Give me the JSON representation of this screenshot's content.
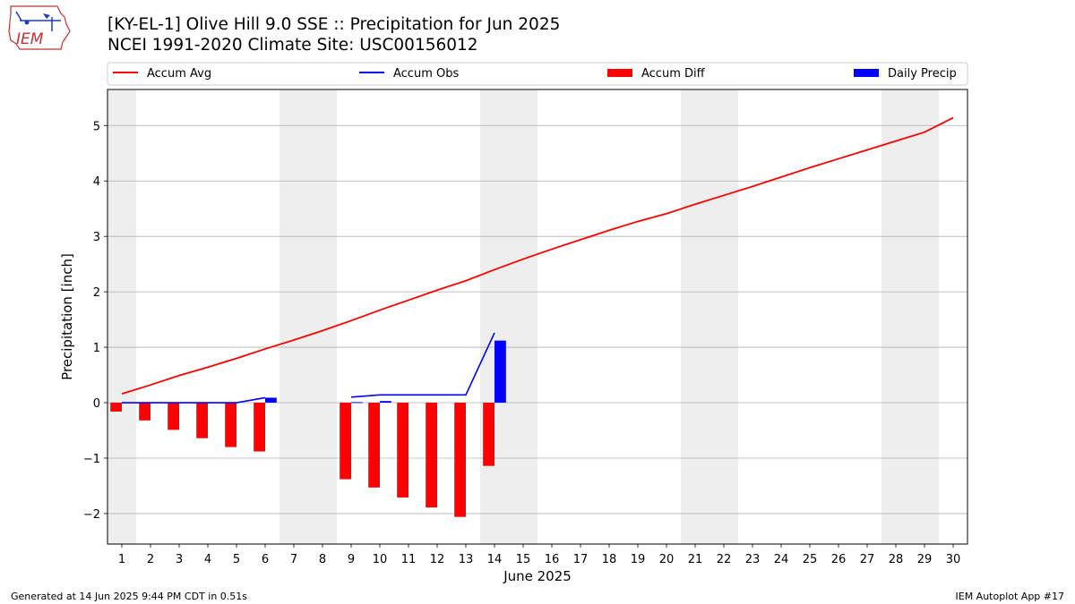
{
  "header": {
    "title_line1": "[KY-EL-1] Olive Hill 9.0 SSE :: Precipitation for Jun 2025",
    "title_line2": "NCEI 1991-2020 Climate Site: USC00156012"
  },
  "logo": {
    "text": "IEM",
    "icon": "iowa-state-logo-icon"
  },
  "footer": {
    "left": "Generated at 14 Jun 2025 9:44 PM CDT in 0.51s",
    "right": "IEM Autoplot App #17"
  },
  "colors": {
    "accum_avg": "#ff0000",
    "accum_obs": "#0000ff",
    "accum_diff": "#ff0000",
    "daily_precip": "#0000ff",
    "weekend_shade": "#eeeeee",
    "grid": "#b0b0b0"
  },
  "chart_data": {
    "type": "bar",
    "xlabel": "June 2025",
    "ylabel": "Precipitation [inch]",
    "xlim": [
      0.5,
      30.5
    ],
    "ylim": [
      -2.55,
      5.65
    ],
    "yticks": [
      -2,
      -1,
      0,
      1,
      2,
      3,
      4,
      5
    ],
    "ytick_labels": [
      "−2",
      "−1",
      "0",
      "1",
      "2",
      "3",
      "4",
      "5"
    ],
    "grid": true,
    "legend_placement": "top, above plot",
    "shaded_weekend_days": [
      1,
      7,
      8,
      14,
      15,
      21,
      22,
      28,
      29
    ],
    "days": [
      1,
      2,
      3,
      4,
      5,
      6,
      7,
      8,
      9,
      10,
      11,
      12,
      13,
      14,
      15,
      16,
      17,
      18,
      19,
      20,
      21,
      22,
      23,
      24,
      25,
      26,
      27,
      28,
      29,
      30
    ],
    "series": [
      {
        "name": "Accum Avg",
        "kind": "line",
        "x": [
          1,
          2,
          3,
          4,
          5,
          6,
          7,
          8,
          9,
          10,
          11,
          12,
          13,
          14,
          15,
          16,
          17,
          18,
          19,
          20,
          21,
          22,
          23,
          24,
          25,
          26,
          27,
          28,
          29,
          30
        ],
        "values": [
          0.16,
          0.32,
          0.49,
          0.64,
          0.8,
          0.97,
          1.13,
          1.3,
          1.48,
          1.67,
          1.85,
          2.03,
          2.2,
          2.4,
          2.59,
          2.77,
          2.94,
          3.11,
          3.27,
          3.41,
          3.58,
          3.74,
          3.9,
          4.07,
          4.24,
          4.4,
          4.56,
          4.72,
          4.88,
          5.14
        ]
      },
      {
        "name": "Accum Obs",
        "kind": "line",
        "segments": [
          {
            "x": [
              1,
              2,
              3,
              4,
              5,
              6
            ],
            "values": [
              0.0,
              0.0,
              0.0,
              0.0,
              0.0,
              0.09
            ]
          },
          {
            "x": [
              9,
              10,
              11,
              12,
              13,
              14
            ],
            "values": [
              0.1,
              0.14,
              0.14,
              0.14,
              0.14,
              1.26
            ]
          }
        ]
      },
      {
        "name": "Accum Diff",
        "kind": "bar",
        "x": [
          1,
          2,
          3,
          4,
          5,
          6,
          9,
          10,
          11,
          12,
          13,
          14
        ],
        "values": [
          -0.16,
          -0.32,
          -0.49,
          -0.64,
          -0.8,
          -0.88,
          -1.38,
          -1.53,
          -1.71,
          -1.89,
          -2.06,
          -1.14
        ]
      },
      {
        "name": "Daily Precip",
        "kind": "bar",
        "x": [
          6,
          9,
          10,
          14
        ],
        "values": [
          0.09,
          0.01,
          0.03,
          1.12
        ]
      }
    ]
  }
}
